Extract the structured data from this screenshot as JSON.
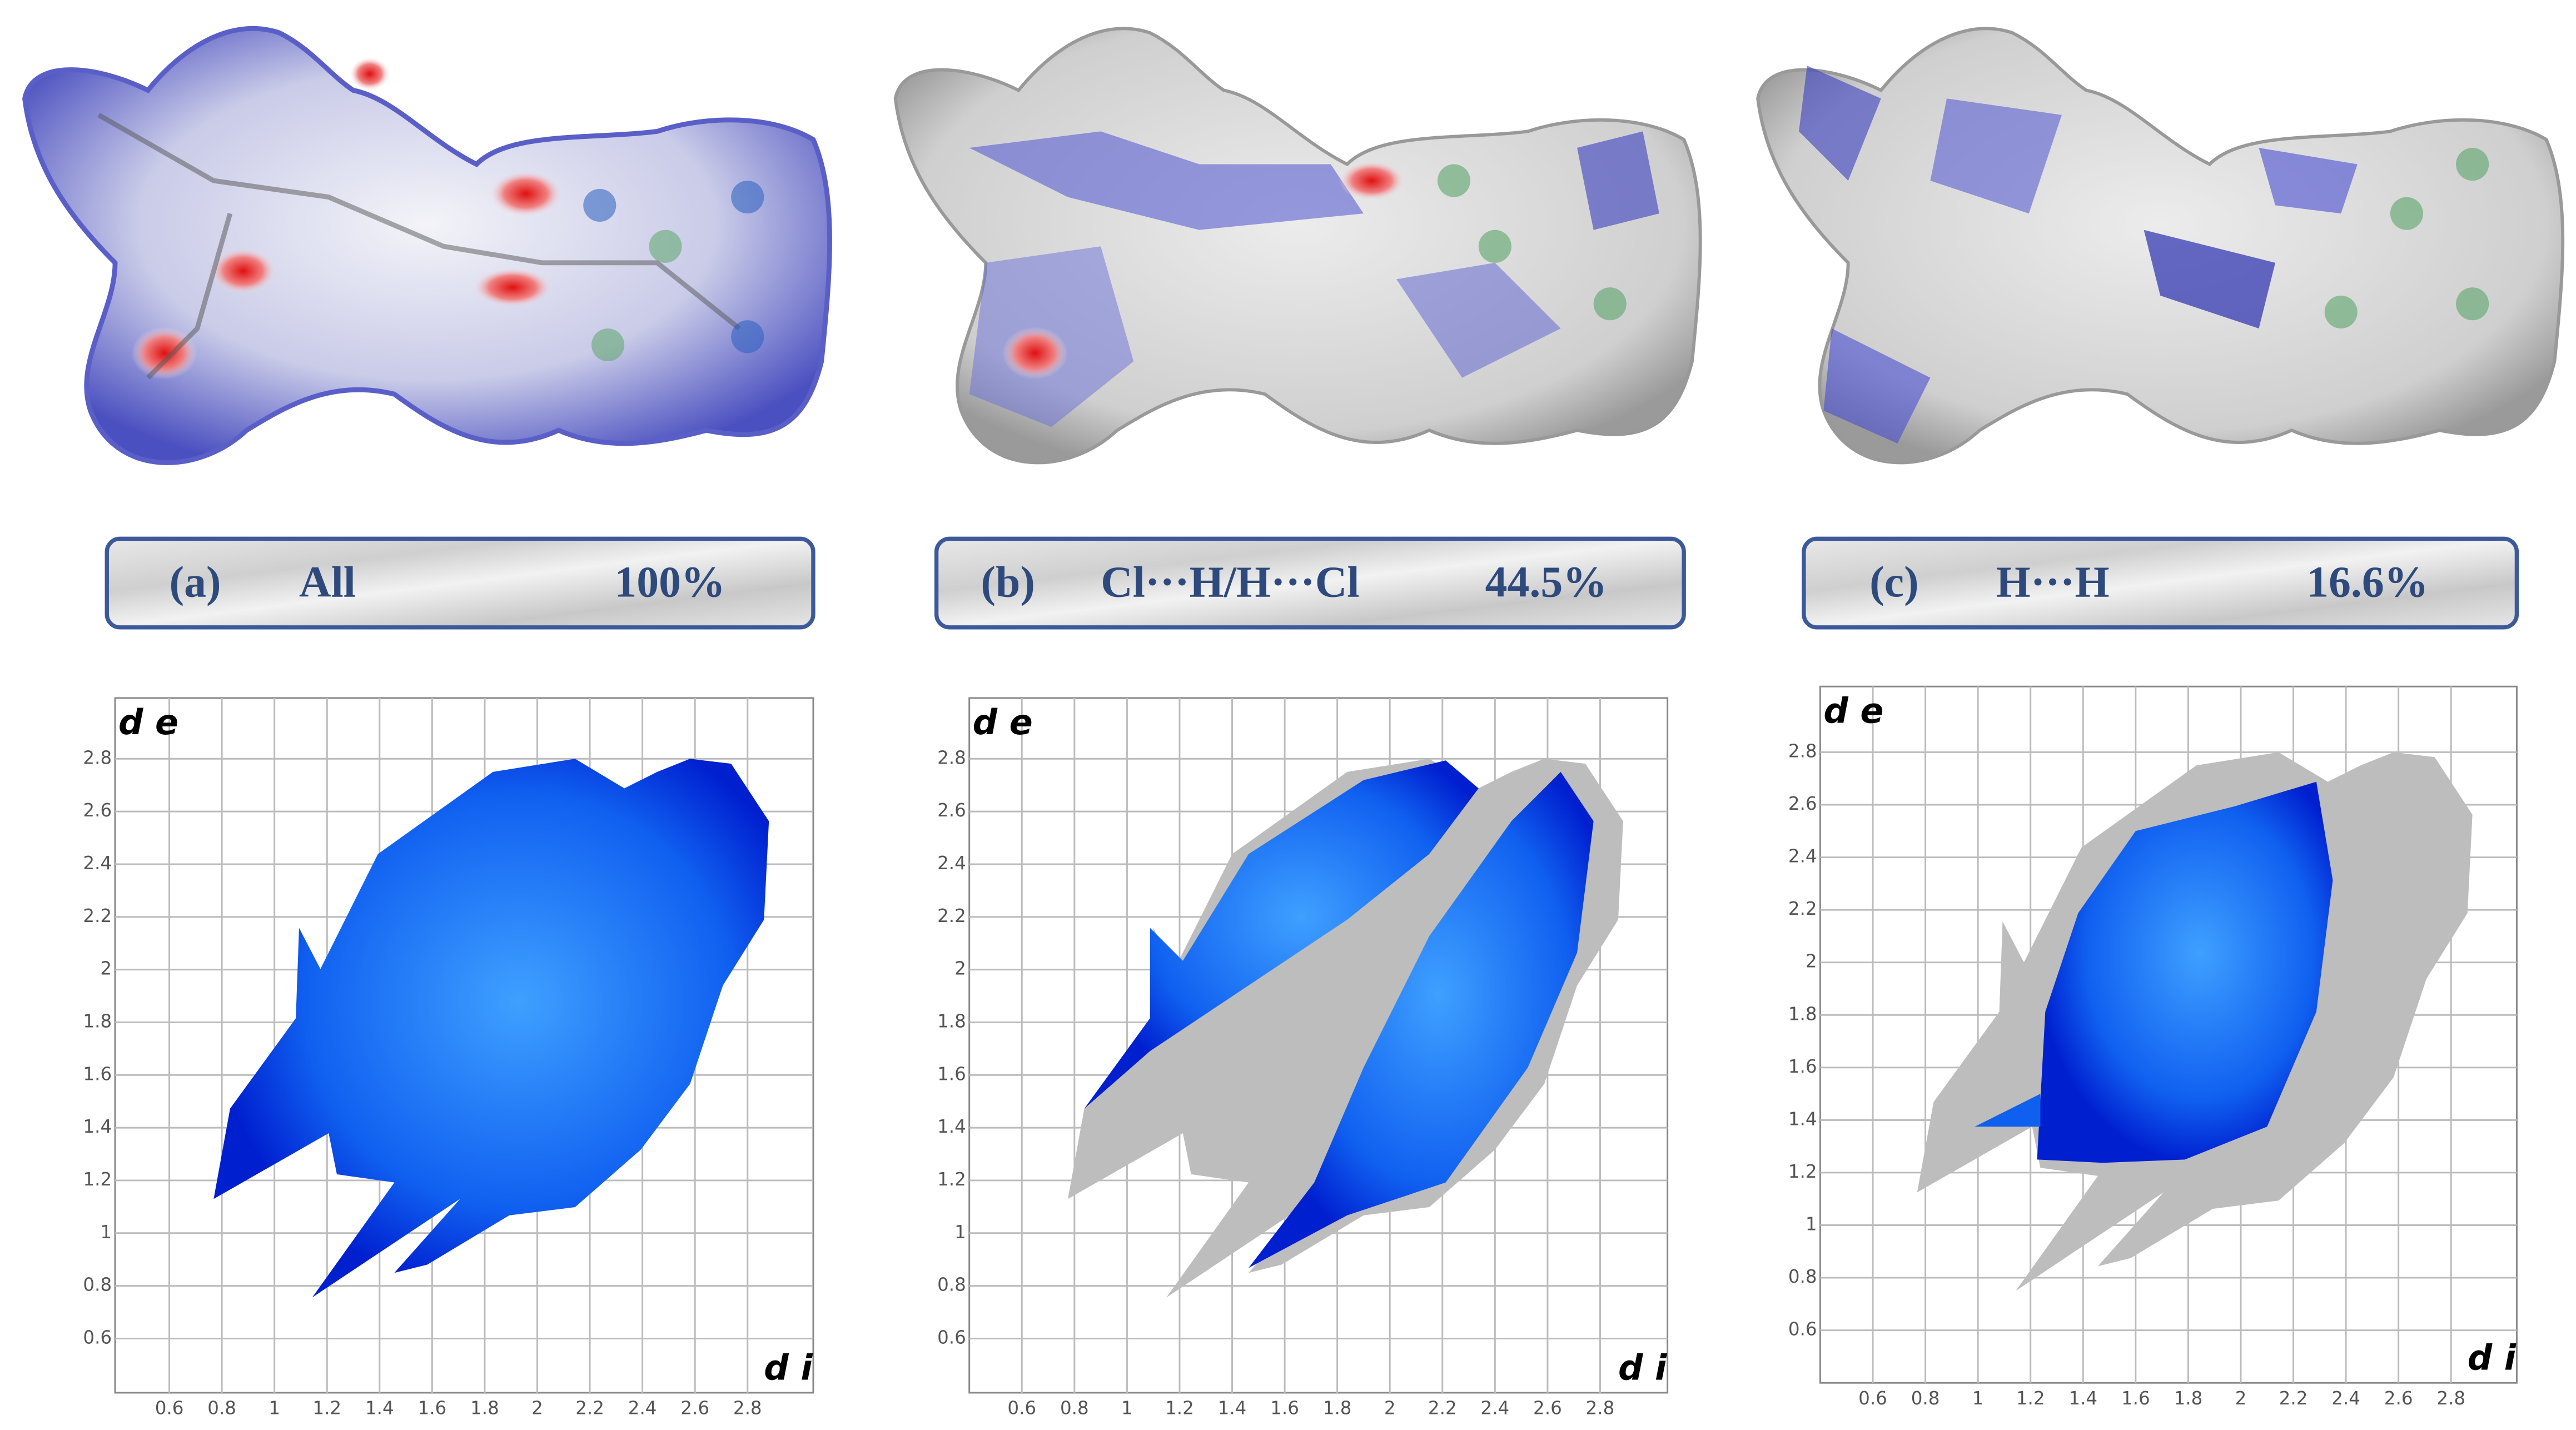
{
  "panels": [
    {
      "label": "(a)",
      "name": "All",
      "percent": "100%",
      "plot": {
        "ylabel": "d e",
        "xlabel": "d i",
        "xticks": [
          0.6,
          0.8,
          1.0,
          1.2,
          1.4,
          1.6,
          1.8,
          2.0,
          2.2,
          2.4,
          2.6,
          2.8
        ],
        "yticks": [
          0.6,
          0.8,
          1.0,
          1.2,
          1.4,
          1.6,
          1.8,
          2.0,
          2.2,
          2.4,
          2.6,
          2.8
        ]
      }
    },
    {
      "label": "(b)",
      "name": "Cl···H/H···Cl",
      "percent": "44.5%",
      "plot": {
        "ylabel": "d e",
        "xlabel": "d i",
        "xticks": [
          0.6,
          0.8,
          1.0,
          1.2,
          1.4,
          1.6,
          1.8,
          2.0,
          2.2,
          2.4,
          2.6,
          2.8
        ],
        "yticks": [
          0.6,
          0.8,
          1.0,
          1.2,
          1.4,
          1.6,
          1.8,
          2.0,
          2.2,
          2.4,
          2.6,
          2.8
        ]
      }
    },
    {
      "label": "(c)",
      "name": "H···H",
      "percent": "16.6%",
      "plot": {
        "ylabel": "d e",
        "xlabel": "d i",
        "xticks": [
          0.6,
          0.8,
          1.0,
          1.2,
          1.4,
          1.6,
          1.8,
          2.0,
          2.2,
          2.4,
          2.6,
          2.8
        ],
        "yticks": [
          0.6,
          0.8,
          1.0,
          1.2,
          1.4,
          1.6,
          1.8,
          2.0,
          2.2,
          2.4,
          2.6,
          2.8
        ]
      }
    }
  ]
}
